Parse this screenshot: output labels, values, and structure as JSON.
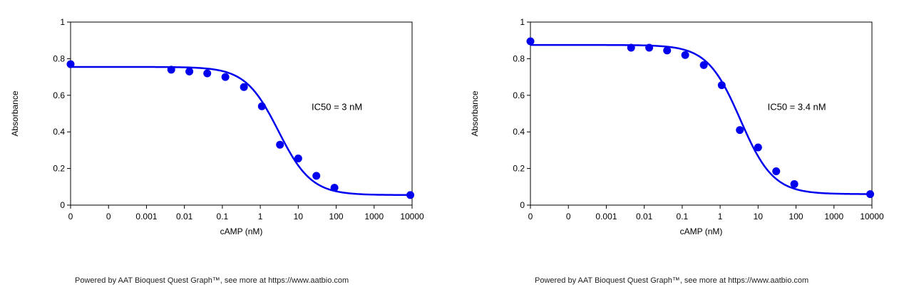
{
  "chart_data": [
    {
      "type": "scatter",
      "xlabel": "cAMP (nM)",
      "ylabel": "Absorbance",
      "x_scale": "log",
      "xlim": [
        1e-05,
        10000
      ],
      "ylim": [
        0,
        1
      ],
      "x_tick_labels": [
        "0",
        "0",
        "0.001",
        "0.01",
        "0.1",
        "1",
        "10",
        "100",
        "1000",
        "10000"
      ],
      "y_tick_labels": [
        "0",
        "0.2",
        "0.4",
        "0.6",
        "0.8",
        "1"
      ],
      "annotation": "IC50 = 3 nM",
      "series": [
        {
          "color": "#0000ee",
          "x": [
            1e-05,
            0.0045,
            0.0135,
            0.04,
            0.12,
            0.37,
            1.1,
            3.3,
            10,
            30,
            90,
            9000
          ],
          "y": [
            0.77,
            0.74,
            0.73,
            0.72,
            0.7,
            0.645,
            0.54,
            0.33,
            0.255,
            0.16,
            0.095,
            0.055
          ]
        }
      ],
      "fit": {
        "top": 0.755,
        "bottom": 0.055,
        "ic50": 3,
        "hill": 1
      },
      "footer": "Powered by AAT Bioquest Quest Graph™, see more at https://www.aatbio.com"
    },
    {
      "type": "scatter",
      "xlabel": "cAMP (nM)",
      "ylabel": "Absorbance",
      "x_scale": "log",
      "xlim": [
        1e-05,
        10000
      ],
      "ylim": [
        0,
        1
      ],
      "x_tick_labels": [
        "0",
        "0",
        "0.001",
        "0.01",
        "0.1",
        "1",
        "10",
        "100",
        "1000",
        "10000"
      ],
      "y_tick_labels": [
        "0",
        "0.2",
        "0.4",
        "0.6",
        "0.8",
        "1"
      ],
      "annotation": "IC50 = 3.4 nM",
      "series": [
        {
          "color": "#0000ee",
          "x": [
            1e-05,
            0.0045,
            0.0135,
            0.04,
            0.12,
            0.37,
            1.1,
            3.3,
            10,
            30,
            90,
            9000
          ],
          "y": [
            0.895,
            0.86,
            0.86,
            0.845,
            0.82,
            0.765,
            0.655,
            0.41,
            0.315,
            0.185,
            0.115,
            0.06
          ]
        }
      ],
      "fit": {
        "top": 0.875,
        "bottom": 0.06,
        "ic50": 3.4,
        "hill": 1
      },
      "footer": "Powered by AAT Bioquest Quest Graph™, see more at https://www.aatbio.com"
    }
  ]
}
